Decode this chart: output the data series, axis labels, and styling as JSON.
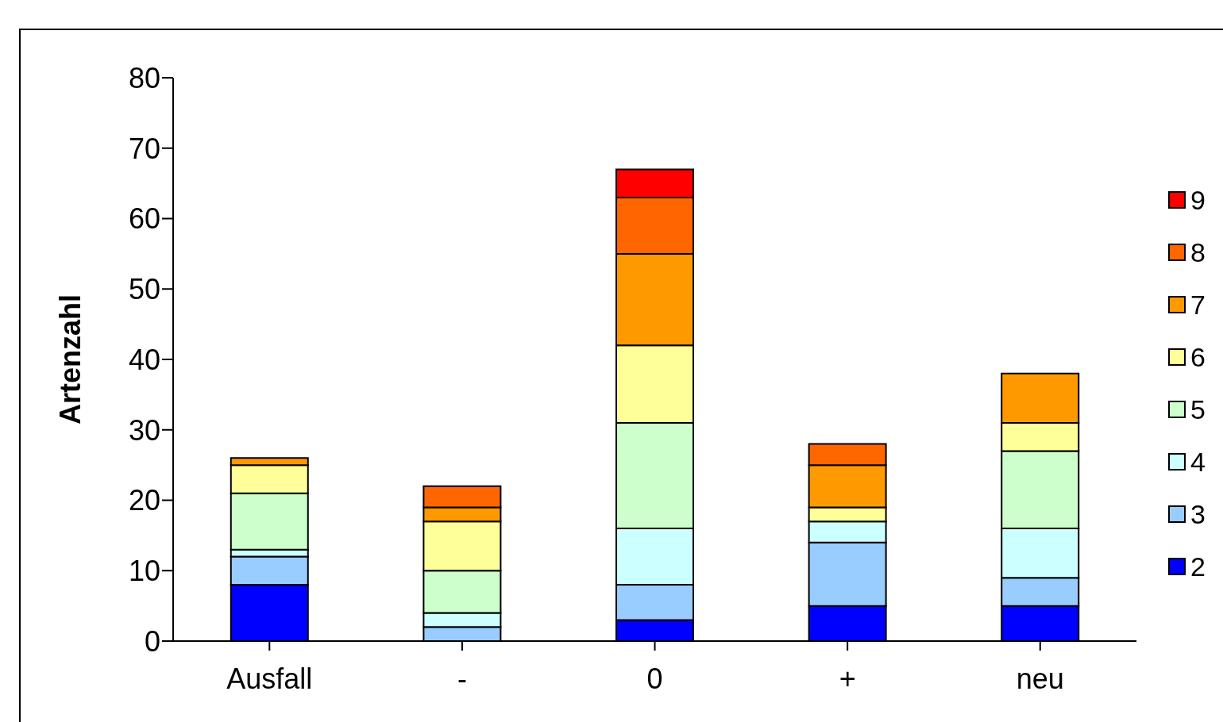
{
  "chart_data": {
    "type": "bar",
    "stacked": true,
    "ylabel": "Artenzahl",
    "categories": [
      "Ausfall",
      "-",
      "0",
      "+",
      "neu"
    ],
    "series": [
      {
        "name": "2",
        "color": "#0000ff",
        "values": [
          8,
          0,
          3,
          5,
          5
        ]
      },
      {
        "name": "3",
        "color": "#99ccff",
        "values": [
          4,
          2,
          5,
          9,
          4
        ]
      },
      {
        "name": "4",
        "color": "#ccffff",
        "values": [
          1,
          2,
          8,
          3,
          7
        ]
      },
      {
        "name": "5",
        "color": "#ccffcc",
        "values": [
          8,
          6,
          15,
          0,
          11
        ]
      },
      {
        "name": "6",
        "color": "#ffff99",
        "values": [
          4,
          7,
          11,
          2,
          4
        ]
      },
      {
        "name": "7",
        "color": "#ff9900",
        "values": [
          1,
          2,
          13,
          6,
          7
        ]
      },
      {
        "name": "8",
        "color": "#ff6600",
        "values": [
          0,
          3,
          8,
          3,
          0
        ]
      },
      {
        "name": "9",
        "color": "#ff0000",
        "values": [
          0,
          0,
          4,
          0,
          0
        ]
      }
    ],
    "ylim": [
      0,
      80
    ],
    "yticks": [
      0,
      10,
      20,
      30,
      40,
      50,
      60,
      70,
      80
    ],
    "grid": false,
    "legend": "right"
  }
}
